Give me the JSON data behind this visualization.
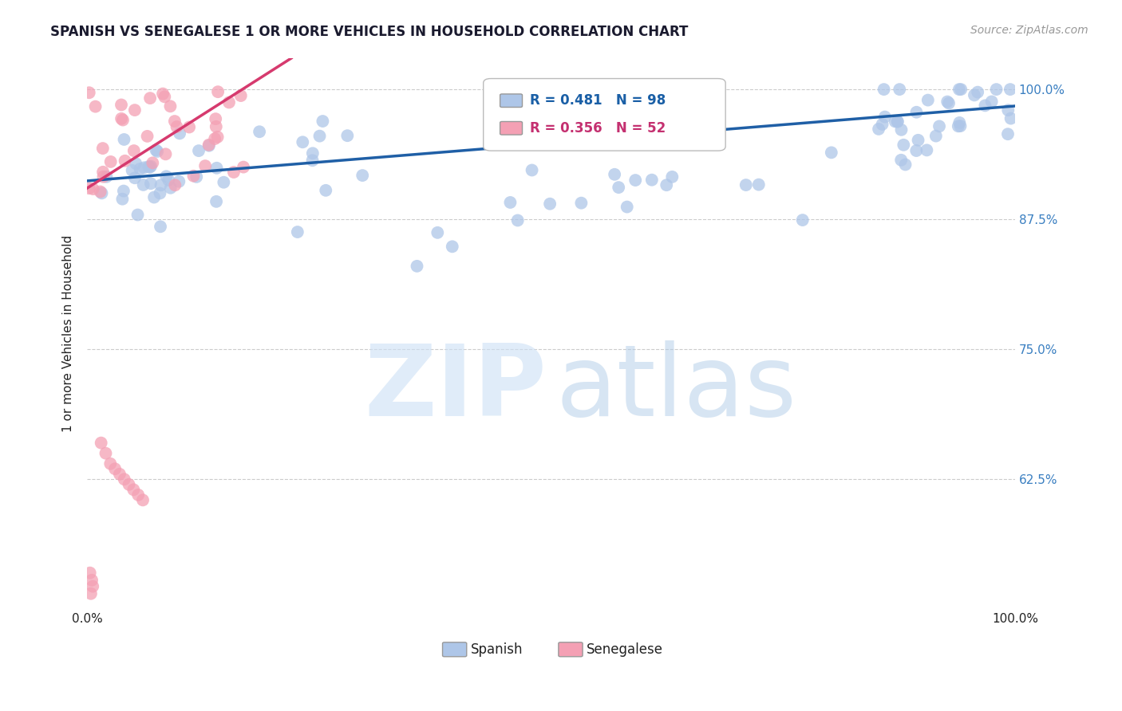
{
  "title": "SPANISH VS SENEGALESE 1 OR MORE VEHICLES IN HOUSEHOLD CORRELATION CHART",
  "source": "Source: ZipAtlas.com",
  "ylabel": "1 or more Vehicles in Household",
  "xlim": [
    0.0,
    1.0
  ],
  "ylim": [
    0.5,
    1.03
  ],
  "ytick_positions": [
    0.625,
    0.75,
    0.875,
    1.0
  ],
  "ytick_labels": [
    "62.5%",
    "75.0%",
    "87.5%",
    "100.0%"
  ],
  "spanish_color": "#aec6e8",
  "senegalese_color": "#f4a0b4",
  "spanish_line_color": "#1f5fa6",
  "senegalese_line_color": "#d63a6e",
  "R_spanish": 0.481,
  "N_spanish": 98,
  "R_senegalese": 0.356,
  "N_senegalese": 52,
  "background_color": "#ffffff",
  "grid_color": "#cccccc",
  "watermark_zip_color": "#cce0f5",
  "watermark_atlas_color": "#b0cce8"
}
